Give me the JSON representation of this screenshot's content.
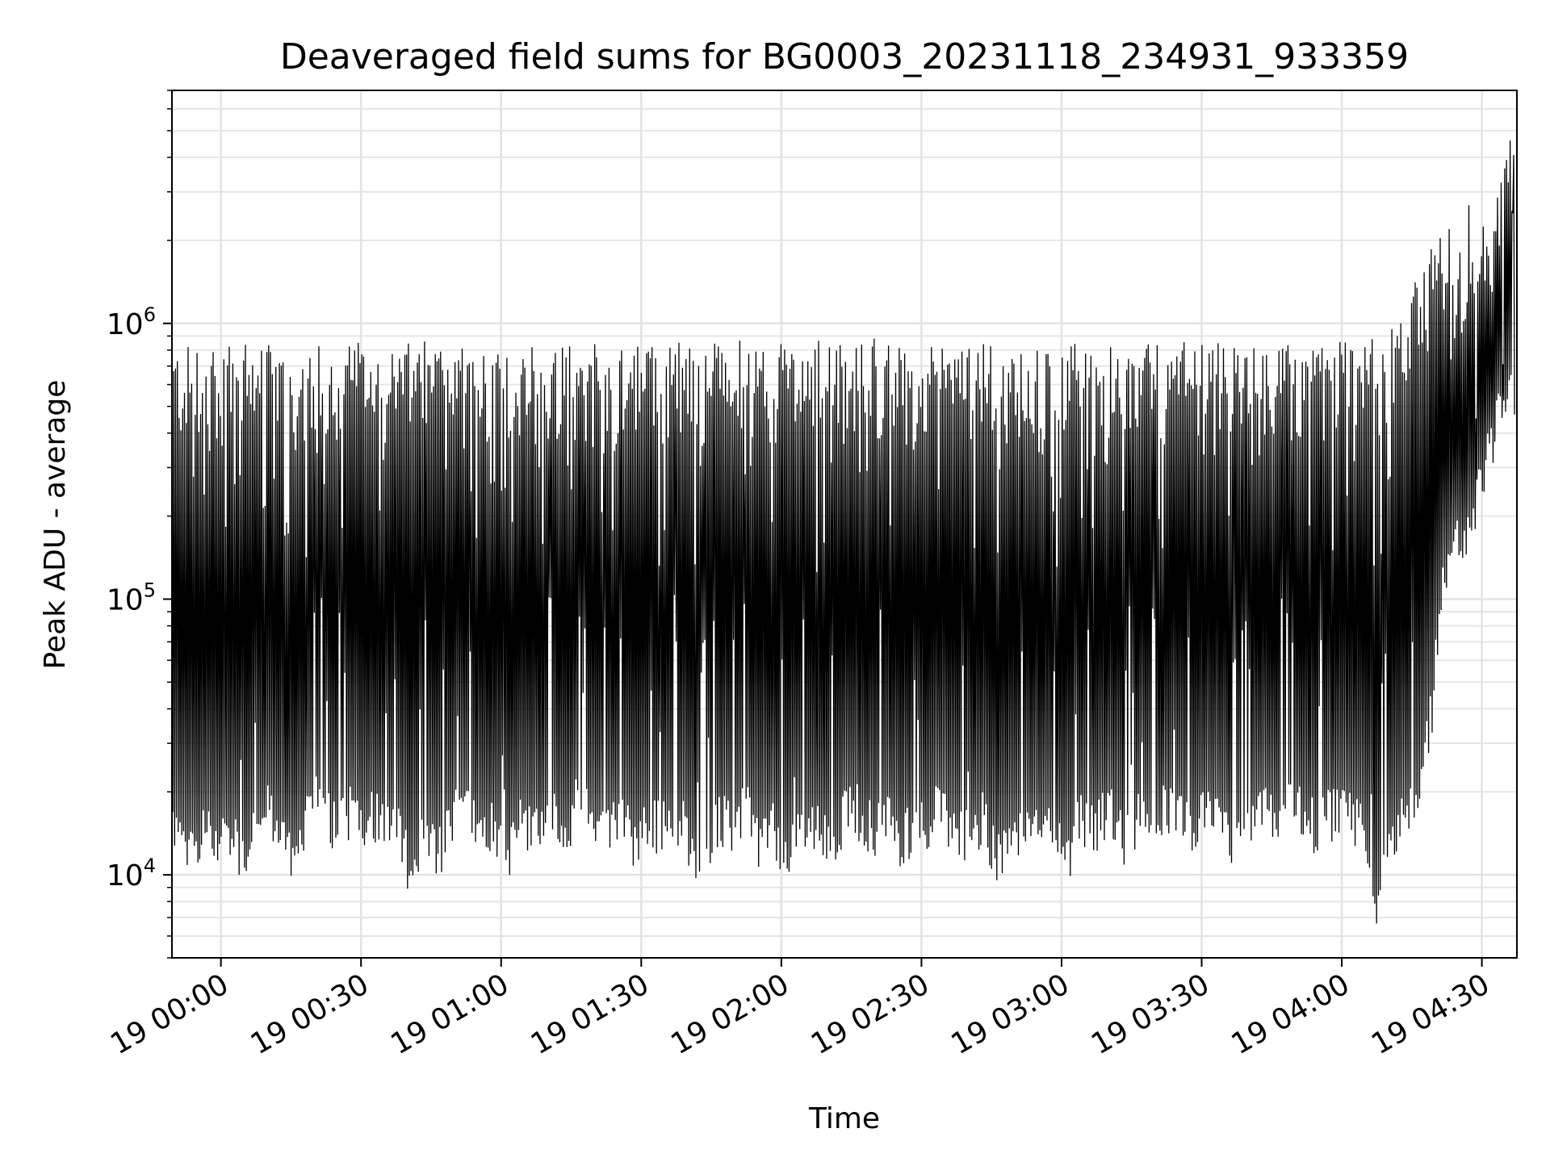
{
  "chart_data": {
    "type": "line",
    "title": "Deaveraged field sums for BG0003_20231118_234931_933359",
    "xlabel": "Time",
    "ylabel": "Peak ADU - average",
    "y_scale": "log",
    "ylim": [
      5000,
      7000000
    ],
    "xlim": [
      "2023-11-18T23:49:31",
      "2023-11-19T04:37:30"
    ],
    "x_ticks": [
      {
        "t": "2023-11-19T00:00:00",
        "label": "19 00:00"
      },
      {
        "t": "2023-11-19T00:30:00",
        "label": "19 00:30"
      },
      {
        "t": "2023-11-19T01:00:00",
        "label": "19 01:00"
      },
      {
        "t": "2023-11-19T01:30:00",
        "label": "19 01:30"
      },
      {
        "t": "2023-11-19T02:00:00",
        "label": "19 02:00"
      },
      {
        "t": "2023-11-19T02:30:00",
        "label": "19 02:30"
      },
      {
        "t": "2023-11-19T03:00:00",
        "label": "19 03:00"
      },
      {
        "t": "2023-11-19T03:30:00",
        "label": "19 03:30"
      },
      {
        "t": "2023-11-19T04:00:00",
        "label": "19 04:00"
      },
      {
        "t": "2023-11-19T04:30:00",
        "label": "19 04:30"
      }
    ],
    "y_ticks": [
      {
        "value": 10000,
        "base": "10",
        "exp": "4"
      },
      {
        "value": 100000,
        "base": "10",
        "exp": "5"
      },
      {
        "value": 1000000,
        "base": "10",
        "exp": "6"
      }
    ],
    "grid": true,
    "line_color": "#000000",
    "series": [
      {
        "x": [
          "2023-11-18T23:49:31",
          "2023-11-18T23:52:00",
          "2023-11-18T23:55:00",
          "2023-11-18T23:58:00",
          "2023-11-19T00:01:00",
          "2023-11-19T00:04:00",
          "2023-11-19T00:07:00",
          "2023-11-19T00:10:00",
          "2023-11-19T00:13:00",
          "2023-11-19T00:16:00",
          "2023-11-19T00:19:00",
          "2023-11-19T00:22:00",
          "2023-11-19T00:25:00",
          "2023-11-19T00:28:00",
          "2023-11-19T00:31:00",
          "2023-11-19T00:34:00",
          "2023-11-19T00:37:00",
          "2023-11-19T00:40:00",
          "2023-11-19T00:43:00",
          "2023-11-19T00:46:00",
          "2023-11-19T00:49:00",
          "2023-11-19T00:52:00",
          "2023-11-19T00:55:00",
          "2023-11-19T00:58:00",
          "2023-11-19T01:01:00",
          "2023-11-19T01:04:00",
          "2023-11-19T01:07:00",
          "2023-11-19T01:10:00",
          "2023-11-19T01:13:00",
          "2023-11-19T01:16:00",
          "2023-11-19T01:19:00",
          "2023-11-19T01:22:00",
          "2023-11-19T01:25:00",
          "2023-11-19T01:28:00",
          "2023-11-19T01:31:00",
          "2023-11-19T01:34:00",
          "2023-11-19T01:37:00",
          "2023-11-19T01:40:00",
          "2023-11-19T01:43:00",
          "2023-11-19T01:46:00",
          "2023-11-19T01:49:00",
          "2023-11-19T01:52:00",
          "2023-11-19T01:55:00",
          "2023-11-19T01:58:00",
          "2023-11-19T02:01:00",
          "2023-11-19T02:04:00",
          "2023-11-19T02:07:00",
          "2023-11-19T02:10:00",
          "2023-11-19T02:13:00",
          "2023-11-19T02:16:00",
          "2023-11-19T02:19:00",
          "2023-11-19T02:22:00",
          "2023-11-19T02:25:00",
          "2023-11-19T02:28:00",
          "2023-11-19T02:31:00",
          "2023-11-19T02:34:00",
          "2023-11-19T02:37:00",
          "2023-11-19T02:40:00",
          "2023-11-19T02:43:00",
          "2023-11-19T02:46:00",
          "2023-11-19T02:49:00",
          "2023-11-19T02:52:00",
          "2023-11-19T02:55:00",
          "2023-11-19T02:58:00",
          "2023-11-19T03:01:00",
          "2023-11-19T03:04:00",
          "2023-11-19T03:07:00",
          "2023-11-19T03:10:00",
          "2023-11-19T03:13:00",
          "2023-11-19T03:16:00",
          "2023-11-19T03:19:00",
          "2023-11-19T03:22:00",
          "2023-11-19T03:25:00",
          "2023-11-19T03:28:00",
          "2023-11-19T03:31:00",
          "2023-11-19T03:34:00",
          "2023-11-19T03:37:00",
          "2023-11-19T03:40:00",
          "2023-11-19T03:43:00",
          "2023-11-19T03:46:00",
          "2023-11-19T03:49:00",
          "2023-11-19T03:52:00",
          "2023-11-19T03:55:00",
          "2023-11-19T03:58:00",
          "2023-11-19T04:01:00",
          "2023-11-19T04:04:00",
          "2023-11-19T04:07:00",
          "2023-11-19T04:10:00",
          "2023-11-19T04:13:00",
          "2023-11-19T04:16:00",
          "2023-11-19T04:19:00",
          "2023-11-19T04:22:00",
          "2023-11-19T04:25:00",
          "2023-11-19T04:28:00",
          "2023-11-19T04:31:00",
          "2023-11-19T04:34:00",
          "2023-11-19T04:37:00"
        ],
        "lower": [
          13000,
          9000,
          12000,
          11000,
          12000,
          9200,
          13000,
          14000,
          11000,
          8700,
          15000,
          14000,
          12000,
          15000,
          13000,
          14000,
          13000,
          8700,
          11000,
          9500,
          13000,
          14000,
          12000,
          13000,
          9000,
          13000,
          12000,
          14000,
          11000,
          15000,
          13000,
          11000,
          14000,
          10500,
          13000,
          12000,
          14000,
          11000,
          9000,
          13000,
          12000,
          14000,
          11000,
          12000,
          8800,
          13000,
          12000,
          11000,
          13000,
          14000,
          12000,
          13000,
          11000,
          12000,
          13000,
          14000,
          12000,
          11000,
          13000,
          9500,
          10000,
          13000,
          12000,
          11000,
          9300,
          13000,
          12000,
          14000,
          11000,
          13000,
          12000,
          14000,
          13000,
          11000,
          14000,
          12000,
          9500,
          13000,
          14000,
          12000,
          15000,
          13000,
          12000,
          14000,
          13000,
          12000,
          6500,
          11000,
          13000,
          17000,
          30000,
          100000,
          130000,
          170000,
          250000,
          400000,
          450000
        ],
        "upper": [
          780000,
          800000,
          760000,
          750000,
          820000,
          850000,
          780000,
          800000,
          760000,
          780000,
          790000,
          800000,
          830000,
          850000,
          780000,
          800000,
          770000,
          810000,
          820000,
          880000,
          790000,
          800000,
          760000,
          820000,
          780000,
          830000,
          790000,
          770000,
          810000,
          800000,
          840000,
          780000,
          820000,
          870000,
          800000,
          790000,
          830000,
          810000,
          780000,
          820000,
          800000,
          850000,
          790000,
          800000,
          810000,
          780000,
          830000,
          840000,
          800000,
          790000,
          870000,
          830000,
          800000,
          780000,
          820000,
          800000,
          790000,
          830000,
          810000,
          850000,
          800000,
          880000,
          830000,
          790000,
          820000,
          800000,
          810000,
          840000,
          790000,
          830000,
          820000,
          800000,
          840000,
          790000,
          810000,
          820000,
          800000,
          780000,
          790000,
          810000,
          820000,
          800000,
          790000,
          810000,
          830000,
          820000,
          850000,
          900000,
          1000000,
          1500000,
          1800000,
          2500000,
          1700000,
          3200000,
          2200000,
          3300000,
          5200000
        ]
      }
    ]
  }
}
